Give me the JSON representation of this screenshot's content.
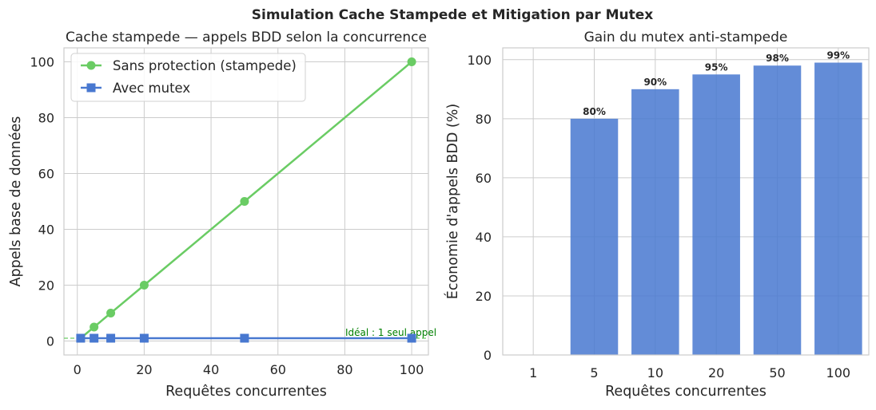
{
  "figure": {
    "suptitle": "Simulation Cache Stampede et Mitigation par Mutex"
  },
  "colors": {
    "green": "#6acc64",
    "blue": "#4878d0",
    "grid": "#cccccc",
    "ideal_text": "#008000"
  },
  "chart_data": [
    {
      "type": "line",
      "title": "Cache stampede — appels BDD selon la concurrence",
      "xlabel": "Requêtes concurrentes",
      "ylabel": "Appels base de données",
      "xlim": [
        -4,
        105
      ],
      "ylim": [
        -5,
        105
      ],
      "xticks": [
        0,
        20,
        40,
        60,
        80,
        100
      ],
      "yticks": [
        0,
        20,
        40,
        60,
        80,
        100
      ],
      "grid": true,
      "legend_position": "top-left",
      "series": [
        {
          "name": "Sans protection (stampede)",
          "marker": "circle",
          "color": "#6acc64",
          "x": [
            1,
            5,
            10,
            20,
            50,
            100
          ],
          "y": [
            1,
            5,
            10,
            20,
            50,
            100
          ]
        },
        {
          "name": "Avec mutex",
          "marker": "square",
          "color": "#4878d0",
          "x": [
            1,
            5,
            10,
            20,
            50,
            100
          ],
          "y": [
            1,
            1,
            1,
            1,
            1,
            1
          ]
        }
      ],
      "reference_line": {
        "y": 1,
        "label": "Idéal : 1 seul appel",
        "color": "#6acc64"
      }
    },
    {
      "type": "bar",
      "title": "Gain du mutex anti-stampede",
      "xlabel": "Requêtes concurrentes",
      "ylabel": "Économie d'appels BDD (%)",
      "ylim": [
        0,
        104
      ],
      "yticks": [
        0,
        20,
        40,
        60,
        80,
        100
      ],
      "grid": true,
      "categories": [
        "1",
        "5",
        "10",
        "20",
        "50",
        "100"
      ],
      "values": [
        0,
        80,
        90,
        95,
        98,
        99
      ],
      "data_labels": [
        "",
        "80%",
        "90%",
        "95%",
        "98%",
        "99%"
      ],
      "color": "#4878d0"
    }
  ]
}
